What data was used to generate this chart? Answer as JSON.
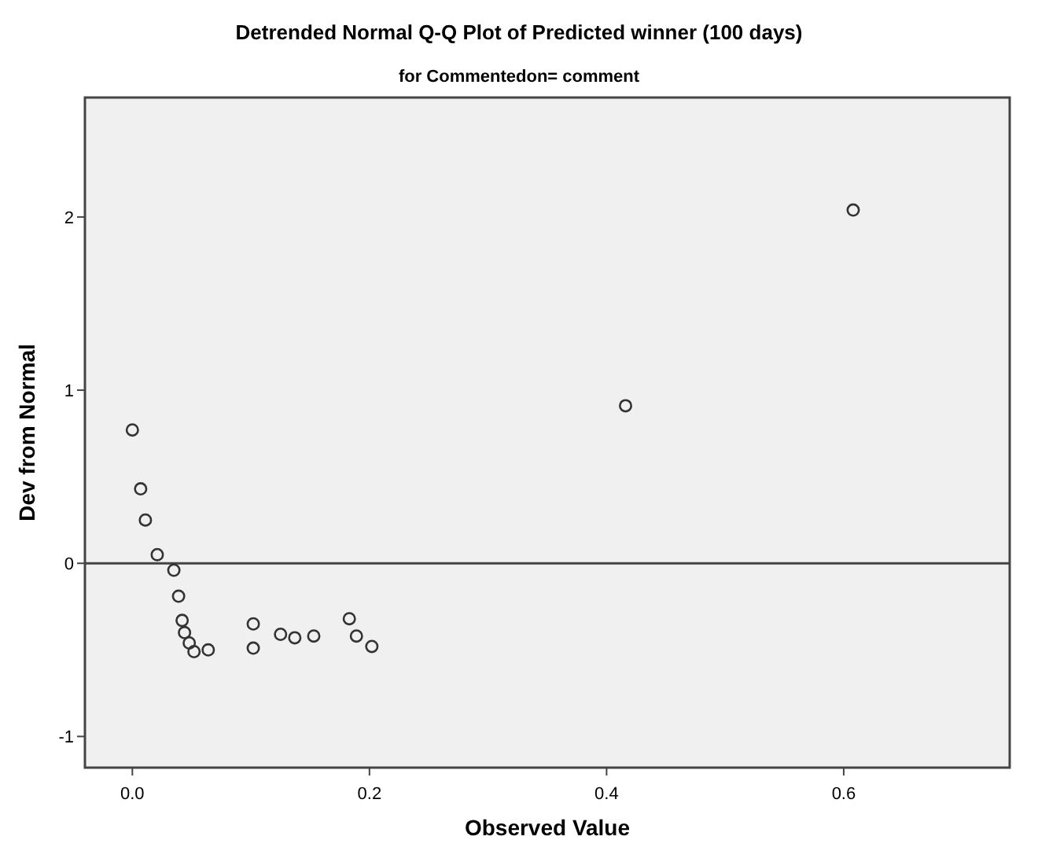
{
  "chart_data": {
    "type": "scatter",
    "title": "Detrended Normal Q-Q Plot of Predicted winner (100 days)",
    "subtitle": "for Commentedon= comment",
    "xlabel": "Observed Value",
    "ylabel": "Dev from Normal",
    "x": [
      0,
      0.007,
      0.011,
      0.021,
      0.035,
      0.039,
      0.042,
      0.044,
      0.048,
      0.052,
      0.064,
      0.102,
      0.102,
      0.125,
      0.137,
      0.153,
      0.183,
      0.189,
      0.202,
      0.416,
      0.608
    ],
    "series": [
      {
        "color": "#333333",
        "values": [
          0.77,
          0.43,
          0.25,
          0.05,
          -0.04,
          -0.19,
          -0.33,
          -0.4,
          -0.46,
          -0.51,
          -0.5,
          -0.35,
          -0.49,
          -0.41,
          -0.43,
          -0.42,
          -0.32,
          -0.42,
          -0.48,
          0.91,
          2.04
        ]
      }
    ],
    "xlim": [
      -0.04,
      0.74
    ],
    "ylim": [
      -1.18,
      2.69
    ],
    "xticks": [
      {
        "value": 0,
        "label": "0.0"
      },
      {
        "value": 0.2,
        "label": "0.2"
      },
      {
        "value": 0.4,
        "label": "0.4"
      },
      {
        "value": 0.6,
        "label": "0.6"
      }
    ],
    "yticks": [
      -1,
      0,
      1,
      2
    ],
    "ref_lines": [
      {
        "axis": "y",
        "value": 0,
        "label": null,
        "color": "#444444"
      }
    ],
    "grid": false,
    "marker": "circle"
  }
}
